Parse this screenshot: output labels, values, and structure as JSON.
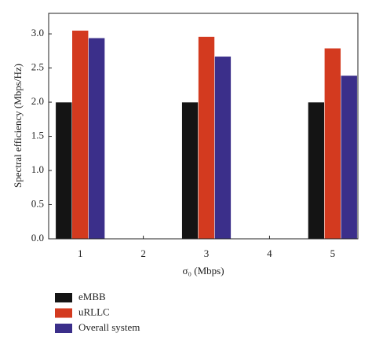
{
  "chart_data": {
    "type": "bar",
    "x": [
      1,
      3,
      5
    ],
    "series": [
      {
        "name": "eMBB",
        "color": "#141414",
        "values": [
          2.0,
          2.0,
          2.0
        ]
      },
      {
        "name": "uRLLC",
        "color": "#d33a1f",
        "values": [
          3.05,
          2.96,
          2.79
        ]
      },
      {
        "name": "Overall system",
        "color": "#3b2f8a",
        "values": [
          2.94,
          2.67,
          2.39
        ]
      }
    ],
    "xlabel": "σ₀ (Mbps)",
    "ylabel": "Spectral efficiency (Mbps/Hz)",
    "xlim": [
      0.5,
      5.4
    ],
    "xticks": [
      1,
      2,
      3,
      4,
      5
    ],
    "ylim": [
      0,
      3.3
    ],
    "yticks": [
      {
        "value": 0,
        "label": "0.0"
      },
      {
        "value": 0.5,
        "label": "0.5"
      },
      {
        "value": 1,
        "label": "1.0"
      },
      {
        "value": 1.5,
        "label": "1.5"
      },
      {
        "value": 2,
        "label": "2.0"
      },
      {
        "value": 2.5,
        "label": "2.5"
      },
      {
        "value": 3,
        "label": "3.0"
      }
    ],
    "legend": "bottom-left"
  }
}
